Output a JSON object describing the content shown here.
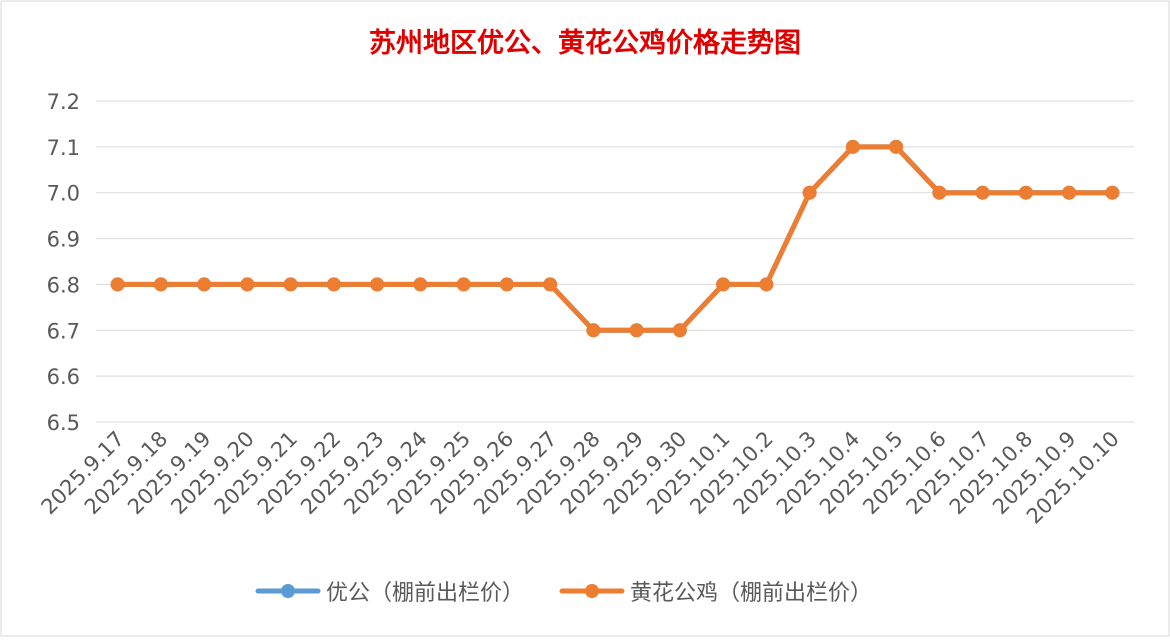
{
  "chart_data": {
    "type": "line",
    "title": "苏州地区优公、黄花公鸡价格走势图",
    "x": [
      "2025.9.17",
      "2025.9.18",
      "2025.9.19",
      "2025.9.20",
      "2025.9.21",
      "2025.9.22",
      "2025.9.23",
      "2025.9.24",
      "2025.9.25",
      "2025.9.26",
      "2025.9.27",
      "2025.9.28",
      "2025.9.29",
      "2025.9.30",
      "2025.10.1",
      "2025.10.2",
      "2025.10.3",
      "2025.10.4",
      "2025.10.5",
      "2025.10.6",
      "2025.10.7",
      "2025.10.8",
      "2025.10.9",
      "2025.10.10"
    ],
    "yticks": [
      "7.2",
      "7.1",
      "7.0",
      "6.9",
      "6.8",
      "6.7",
      "6.6",
      "6.5"
    ],
    "ylim": [
      6.5,
      7.2
    ],
    "grid": true,
    "legend_position": "bottom",
    "series": [
      {
        "name": "优公（棚前出栏价）",
        "color": "#5b9bd5",
        "values": [
          6.8,
          6.8,
          6.8,
          6.8,
          6.8,
          6.8,
          6.8,
          6.8,
          6.8,
          6.8,
          6.8,
          6.7,
          6.7,
          6.7,
          6.8,
          6.8,
          7.0,
          7.1,
          7.1,
          7.0,
          7.0,
          7.0,
          7.0,
          7.0
        ]
      },
      {
        "name": "黄花公鸡（棚前出栏价）",
        "color": "#ed7d31",
        "values": [
          6.8,
          6.8,
          6.8,
          6.8,
          6.8,
          6.8,
          6.8,
          6.8,
          6.8,
          6.8,
          6.8,
          6.7,
          6.7,
          6.7,
          6.8,
          6.8,
          7.0,
          7.1,
          7.1,
          7.0,
          7.0,
          7.0,
          7.0,
          7.0
        ]
      }
    ],
    "title_color": "#e00000"
  }
}
